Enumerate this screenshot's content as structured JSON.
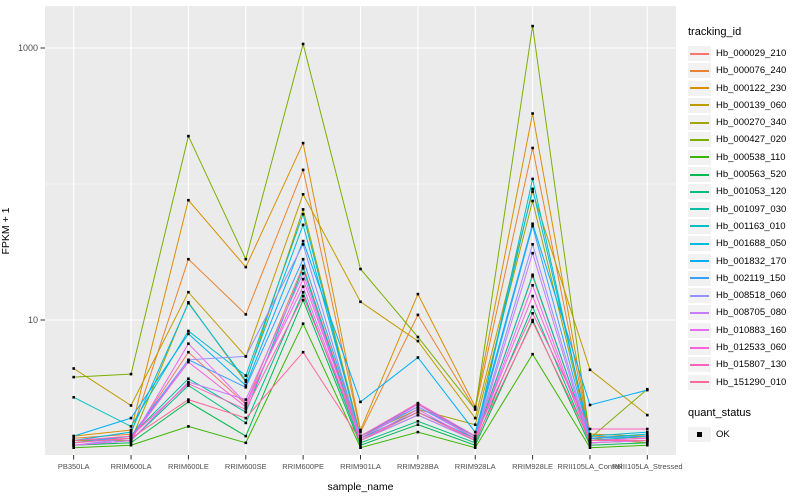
{
  "chart_data": {
    "type": "line",
    "title": "",
    "xlabel": "sample_name",
    "ylabel": "FPKM + 1",
    "y_scale": "log10",
    "ylim": [
      1,
      2000
    ],
    "y_major_ticks": [
      10,
      1000
    ],
    "y_minor_ticks": [
      1,
      100
    ],
    "grid": "on",
    "legend_position": "right",
    "point_shape": "filled-square",
    "categories": [
      "PB350LA",
      "RRIM600LA",
      "RRIM600LE",
      "RRIM600SE",
      "RRIM600PE",
      "RRIM901LA",
      "RRIM928BA",
      "RRIM928LA",
      "RRIM928LE",
      "RRII105LA_Control",
      "RRII105LA_Stressed"
    ],
    "series": [
      {
        "name": "Hb_000029_210",
        "color": "#F8766D",
        "values": [
          1.3,
          1.35,
          5.8,
          2.4,
          25,
          1.35,
          2.1,
          1.35,
          21,
          1.3,
          1.3
        ]
      },
      {
        "name": "Hb_000076_240",
        "color": "#EA8331",
        "values": [
          1.35,
          1.45,
          28,
          11,
          127,
          1.5,
          10.9,
          2.2,
          184,
          1.4,
          1.35
        ]
      },
      {
        "name": "Hb_000122_230",
        "color": "#D89000",
        "values": [
          1.4,
          1.55,
          76,
          24.5,
          200,
          1.55,
          15.5,
          2.3,
          330,
          1.45,
          1.4
        ]
      },
      {
        "name": "Hb_000139_060",
        "color": "#C09B00",
        "values": [
          4.4,
          2.35,
          16,
          5.4,
          84,
          13.6,
          7.0,
          1.9,
          88,
          4.3,
          2.0
        ]
      },
      {
        "name": "Hb_000270_340",
        "color": "#A3A500",
        "values": [
          1.3,
          1.3,
          13.5,
          3.5,
          65,
          1.4,
          2.2,
          1.7,
          75,
          1.35,
          1.25
        ]
      },
      {
        "name": "Hb_000427_020",
        "color": "#7CAE00",
        "values": [
          3.8,
          4.0,
          225,
          28,
          1070,
          23.7,
          7.5,
          2.2,
          1450,
          1.35,
          3.1
        ]
      },
      {
        "name": "Hb_000538_110",
        "color": "#39B600",
        "values": [
          1.15,
          1.2,
          1.65,
          1.25,
          9.4,
          1.15,
          1.5,
          1.15,
          5.6,
          1.15,
          1.2
        ]
      },
      {
        "name": "Hb_000563_520",
        "color": "#00BB4E",
        "values": [
          1.2,
          1.25,
          2.5,
          1.4,
          14,
          1.2,
          1.7,
          1.2,
          10,
          1.2,
          1.25
        ]
      },
      {
        "name": "Hb_001053_120",
        "color": "#00BF7D",
        "values": [
          1.2,
          1.3,
          3.3,
          1.75,
          16,
          1.25,
          1.8,
          1.25,
          12.5,
          1.25,
          1.3
        ]
      },
      {
        "name": "Hb_001097_030",
        "color": "#00C1A3",
        "values": [
          1.25,
          1.4,
          3.7,
          2.1,
          24,
          1.3,
          2.0,
          1.3,
          21.5,
          1.3,
          1.4
        ]
      },
      {
        "name": "Hb_001163_010",
        "color": "#00BFC4",
        "values": [
          2.7,
          1.65,
          8.3,
          3.9,
          60,
          1.35,
          2.1,
          1.35,
          109,
          1.35,
          1.45
        ]
      },
      {
        "name": "Hb_001688_050",
        "color": "#00BAE0",
        "values": [
          1.3,
          1.5,
          13.3,
          3.6,
          50,
          1.4,
          2.3,
          1.4,
          92,
          1.4,
          1.5
        ]
      },
      {
        "name": "Hb_001832_170",
        "color": "#00B0F6",
        "values": [
          1.4,
          1.9,
          7.9,
          3.3,
          38,
          2.5,
          5.3,
          1.5,
          51,
          2.37,
          3.05
        ]
      },
      {
        "name": "Hb_002119_150",
        "color": "#35A2FF",
        "values": [
          1.25,
          1.4,
          5.1,
          3.2,
          28,
          1.4,
          2.4,
          1.4,
          49,
          1.35,
          1.4
        ]
      },
      {
        "name": "Hb_008518_060",
        "color": "#9590FF",
        "values": [
          1.2,
          1.35,
          5.1,
          5.4,
          36,
          1.35,
          2.3,
          1.35,
          36,
          1.3,
          1.35
        ]
      },
      {
        "name": "Hb_008705_080",
        "color": "#C77CFF",
        "values": [
          1.2,
          1.3,
          3.5,
          2.6,
          22,
          1.3,
          2.0,
          1.3,
          31,
          1.25,
          1.3
        ]
      },
      {
        "name": "Hb_010883_160",
        "color": "#E76BF3",
        "values": [
          1.2,
          1.3,
          6.7,
          2.45,
          17.6,
          1.3,
          2.2,
          1.3,
          18,
          1.25,
          1.3
        ]
      },
      {
        "name": "Hb_012533_060",
        "color": "#FA62DB",
        "values": [
          1.25,
          1.35,
          4.9,
          2.3,
          20,
          1.35,
          2.4,
          1.35,
          15,
          1.3,
          1.35
        ]
      },
      {
        "name": "Hb_015807_130",
        "color": "#FF62BC",
        "values": [
          1.3,
          1.4,
          3.4,
          2.2,
          15,
          1.4,
          2.45,
          1.4,
          11.2,
          1.58,
          1.58
        ]
      },
      {
        "name": "Hb_151290_010",
        "color": "#FF6A98",
        "values": [
          1.25,
          1.35,
          2.6,
          1.9,
          5.8,
          1.3,
          2.1,
          1.3,
          9.7,
          1.3,
          1.3
        ]
      }
    ],
    "color_legend_title": "tracking_id",
    "shape_legend_title": "quant_status",
    "shape_legend_items": [
      {
        "label": "OK",
        "shape": "filled-square",
        "color": "#000000"
      }
    ],
    "colors": {
      "panel_background": "#EBEBEB",
      "gridline": "#FFFFFF",
      "legend_key_background": "#F2F2F2",
      "axis_text": "#4D4D4D",
      "tick_mark": "#333333",
      "point": "#000000"
    }
  }
}
